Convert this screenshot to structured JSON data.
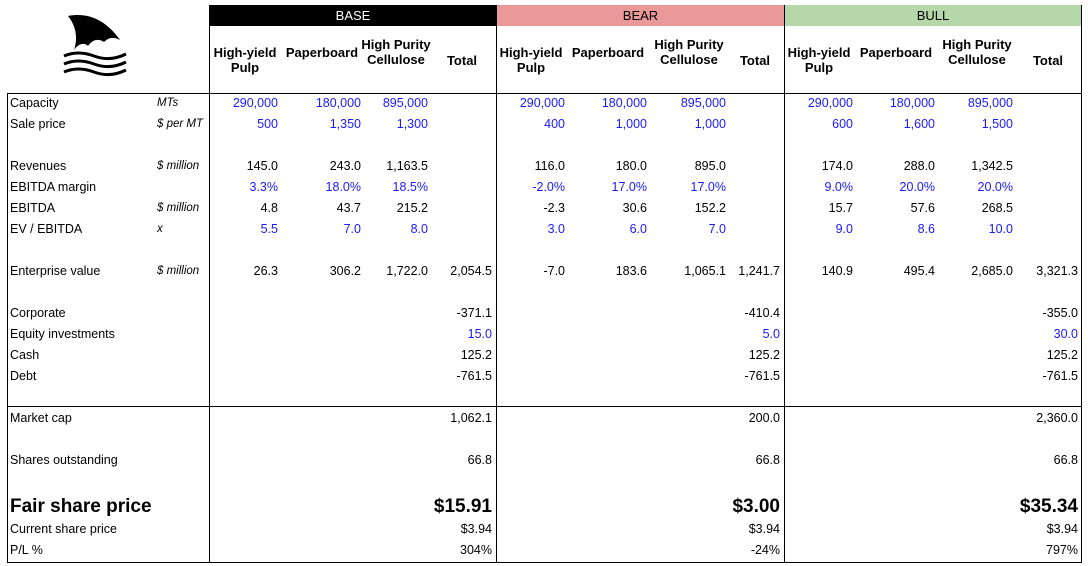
{
  "colors": {
    "base": "#000000",
    "bear": "#ea9999",
    "bull": "#b6d7a8",
    "input_blue": "#1a1aff"
  },
  "logo_icon": "shark-fin-icon",
  "scenarios": [
    {
      "key": "base",
      "label": "BASE",
      "columns": [
        "High-yield Pulp",
        "Paperboard",
        "High Purity Cellulose",
        "Total"
      ]
    },
    {
      "key": "bear",
      "label": "BEAR",
      "columns": [
        "High-yield Pulp",
        "Paperboard",
        "High Purity Cellulose",
        "Total"
      ]
    },
    {
      "key": "bull",
      "label": "BULL",
      "columns": [
        "High-yield Pulp",
        "Paperboard",
        "High Purity Cellulose",
        "Total"
      ]
    }
  ],
  "rows": [
    {
      "label": "Capacity",
      "unit": "MTs",
      "blue": true,
      "base": [
        "290,000",
        "180,000",
        "895,000",
        ""
      ],
      "bear": [
        "290,000",
        "180,000",
        "895,000",
        ""
      ],
      "bull": [
        "290,000",
        "180,000",
        "895,000",
        ""
      ]
    },
    {
      "label": "Sale price",
      "unit": "$ per MT",
      "blue": true,
      "base": [
        "500",
        "1,350",
        "1,300",
        ""
      ],
      "bear": [
        "400",
        "1,000",
        "1,000",
        ""
      ],
      "bull": [
        "600",
        "1,600",
        "1,500",
        ""
      ]
    },
    {
      "label": "Revenues",
      "unit": "$ million",
      "blue": false,
      "base": [
        "145.0",
        "243.0",
        "1,163.5",
        ""
      ],
      "bear": [
        "116.0",
        "180.0",
        "895.0",
        ""
      ],
      "bull": [
        "174.0",
        "288.0",
        "1,342.5",
        ""
      ]
    },
    {
      "label": "EBITDA margin",
      "unit": "",
      "blue": true,
      "base": [
        "3.3%",
        "18.0%",
        "18.5%",
        ""
      ],
      "bear": [
        "-2.0%",
        "17.0%",
        "17.0%",
        ""
      ],
      "bull": [
        "9.0%",
        "20.0%",
        "20.0%",
        ""
      ]
    },
    {
      "label": "EBITDA",
      "unit": "$ million",
      "blue": false,
      "base": [
        "4.8",
        "43.7",
        "215.2",
        ""
      ],
      "bear": [
        "-2.3",
        "30.6",
        "152.2",
        ""
      ],
      "bull": [
        "15.7",
        "57.6",
        "268.5",
        ""
      ]
    },
    {
      "label": "EV / EBITDA",
      "unit": "x",
      "blue": true,
      "base": [
        "5.5",
        "7.0",
        "8.0",
        ""
      ],
      "bear": [
        "3.0",
        "6.0",
        "7.0",
        ""
      ],
      "bull": [
        "9.0",
        "8.6",
        "10.0",
        ""
      ]
    },
    {
      "label": "Enterprise value",
      "unit": "$ million",
      "blue": false,
      "base": [
        "26.3",
        "306.2",
        "1,722.0",
        "2,054.5"
      ],
      "bear": [
        "-7.0",
        "183.6",
        "1,065.1",
        "1,241.7"
      ],
      "bull": [
        "140.9",
        "495.4",
        "2,685.0",
        "3,321.3"
      ]
    },
    {
      "label": "Corporate",
      "unit": "",
      "blue": false,
      "base": [
        "",
        "",
        "",
        "-371.1"
      ],
      "bear": [
        "",
        "",
        "",
        "-410.4"
      ],
      "bull": [
        "",
        "",
        "",
        "-355.0"
      ]
    },
    {
      "label": "Equity investments",
      "unit": "",
      "blue": true,
      "base": [
        "",
        "",
        "",
        "15.0"
      ],
      "bear": [
        "",
        "",
        "",
        "5.0"
      ],
      "bull": [
        "",
        "",
        "",
        "30.0"
      ]
    },
    {
      "label": "Cash",
      "unit": "",
      "blue": false,
      "base": [
        "",
        "",
        "",
        "125.2"
      ],
      "bear": [
        "",
        "",
        "",
        "125.2"
      ],
      "bull": [
        "",
        "",
        "",
        "125.2"
      ]
    },
    {
      "label": "Debt",
      "unit": "",
      "blue": false,
      "base": [
        "",
        "",
        "",
        "-761.5"
      ],
      "bear": [
        "",
        "",
        "",
        "-761.5"
      ],
      "bull": [
        "",
        "",
        "",
        "-761.5"
      ]
    },
    {
      "label": "Market cap",
      "unit": "",
      "blue": false,
      "base": [
        "",
        "",
        "",
        "1,062.1"
      ],
      "bear": [
        "",
        "",
        "",
        "200.0"
      ],
      "bull": [
        "",
        "",
        "",
        "2,360.0"
      ]
    },
    {
      "label": "Shares outstanding",
      "unit": "",
      "blue": false,
      "base": [
        "",
        "",
        "",
        "66.8"
      ],
      "bear": [
        "",
        "",
        "",
        "66.8"
      ],
      "bull": [
        "",
        "",
        "",
        "66.8"
      ]
    },
    {
      "label": "Fair share price",
      "unit": "",
      "blue": false,
      "big": true,
      "base": [
        "",
        "",
        "",
        "$15.91"
      ],
      "bear": [
        "",
        "",
        "",
        "$3.00"
      ],
      "bull": [
        "",
        "",
        "",
        "$35.34"
      ]
    },
    {
      "label": "Current share price",
      "unit": "",
      "blue": false,
      "base": [
        "",
        "",
        "",
        "$3.94"
      ],
      "bear": [
        "",
        "",
        "",
        "$3.94"
      ],
      "bull": [
        "",
        "",
        "",
        "$3.94"
      ]
    },
    {
      "label": "P/L %",
      "unit": "",
      "blue": false,
      "base": [
        "",
        "",
        "",
        "304%"
      ],
      "bear": [
        "",
        "",
        "",
        "-24%"
      ],
      "bull": [
        "",
        "",
        "",
        "797%"
      ]
    }
  ]
}
